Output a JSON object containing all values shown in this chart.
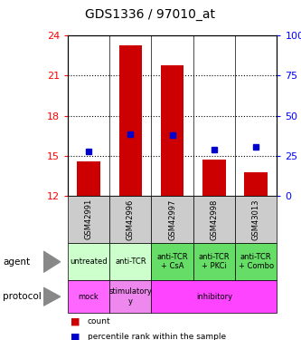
{
  "title": "GDS1336 / 97010_at",
  "samples": [
    "GSM42991",
    "GSM42996",
    "GSM42997",
    "GSM42998",
    "GSM43013"
  ],
  "bar_bottoms": [
    12,
    12,
    12,
    12,
    12
  ],
  "bar_tops": [
    14.55,
    23.3,
    21.75,
    14.7,
    13.75
  ],
  "blue_dot_y": [
    15.3,
    16.6,
    16.55,
    15.45,
    15.65
  ],
  "ylim": [
    12,
    24
  ],
  "yticks_left": [
    12,
    15,
    18,
    21,
    24
  ],
  "yticks_right": [
    0,
    25,
    50,
    75,
    100
  ],
  "bar_color": "#cc0000",
  "dot_color": "#0000cc",
  "agent_labels": [
    "untreated",
    "anti-TCR",
    "anti-TCR\n+ CsA",
    "anti-TCR\n+ PKCi",
    "anti-TCR\n+ Combo"
  ],
  "agent_colors": [
    "#ccffcc",
    "#ccffcc",
    "#66dd66",
    "#66dd66",
    "#66dd66"
  ],
  "protocol_configs": [
    [
      0,
      1,
      "#ff66ff",
      "mock"
    ],
    [
      1,
      2,
      "#ee88ee",
      "stimulatory\ny"
    ],
    [
      2,
      5,
      "#ff44ff",
      "inhibitory"
    ]
  ],
  "sample_bg": "#cccccc",
  "title_fontsize": 10,
  "tick_fontsize": 8,
  "cell_fontsize": 6,
  "label_fontsize": 7.5
}
